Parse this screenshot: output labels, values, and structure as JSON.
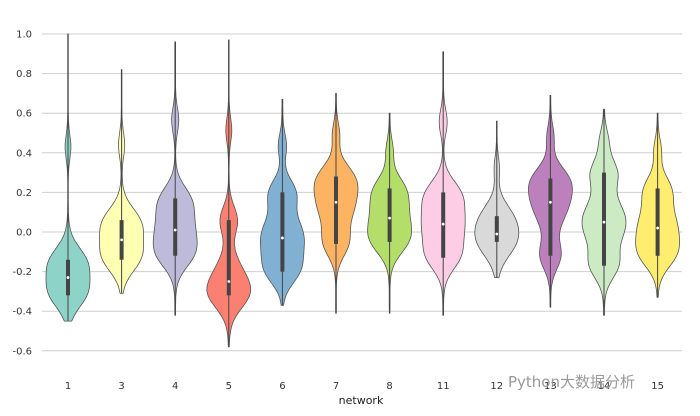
{
  "chart_data": {
    "type": "violin",
    "title": "",
    "xlabel": "network",
    "ylabel": "",
    "ylim": [
      -0.7,
      1.0
    ],
    "yticks": [
      "-0.6",
      "-0.4",
      "-0.2",
      "0.0",
      "0.2",
      "0.4",
      "0.6",
      "0.8",
      "1.0"
    ],
    "grid": "horizontal",
    "categories": [
      "1",
      "3",
      "4",
      "5",
      "6",
      "7",
      "8",
      "11",
      "12",
      "13",
      "14",
      "15"
    ],
    "series": [
      {
        "category": "1",
        "color": "#8dd3c7",
        "min": -0.45,
        "max": 1.0,
        "q1": -0.32,
        "median": -0.23,
        "q3": -0.14
      },
      {
        "category": "3",
        "color": "#ffffb3",
        "min": -0.31,
        "max": 0.82,
        "q1": -0.14,
        "median": -0.04,
        "q3": 0.06
      },
      {
        "category": "4",
        "color": "#bebada",
        "min": -0.42,
        "max": 0.96,
        "q1": -0.12,
        "median": 0.01,
        "q3": 0.17
      },
      {
        "category": "5",
        "color": "#fb8072",
        "min": -0.58,
        "max": 0.97,
        "q1": -0.32,
        "median": -0.25,
        "q3": 0.06
      },
      {
        "category": "6",
        "color": "#80b1d3",
        "min": -0.37,
        "max": 0.67,
        "q1": -0.2,
        "median": -0.03,
        "q3": 0.2
      },
      {
        "category": "7",
        "color": "#fdb462",
        "min": -0.41,
        "max": 0.7,
        "q1": -0.06,
        "median": 0.15,
        "q3": 0.28
      },
      {
        "category": "8",
        "color": "#b3de69",
        "min": -0.41,
        "max": 0.6,
        "q1": -0.05,
        "median": 0.07,
        "q3": 0.22
      },
      {
        "category": "11",
        "color": "#fccde5",
        "min": -0.42,
        "max": 0.91,
        "q1": -0.13,
        "median": 0.04,
        "q3": 0.2
      },
      {
        "category": "12",
        "color": "#d9d9d9",
        "min": -0.23,
        "max": 0.56,
        "q1": -0.05,
        "median": -0.01,
        "q3": 0.08
      },
      {
        "category": "13",
        "color": "#bc80bd",
        "min": -0.38,
        "max": 0.69,
        "q1": -0.12,
        "median": 0.15,
        "q3": 0.27
      },
      {
        "category": "14",
        "color": "#ccebc5",
        "min": -0.42,
        "max": 0.62,
        "q1": -0.17,
        "median": 0.05,
        "q3": 0.3
      },
      {
        "category": "15",
        "color": "#ffed6f",
        "min": -0.33,
        "max": 0.6,
        "q1": -0.12,
        "median": 0.02,
        "q3": 0.22
      }
    ]
  },
  "watermark": "Python大数据分析"
}
